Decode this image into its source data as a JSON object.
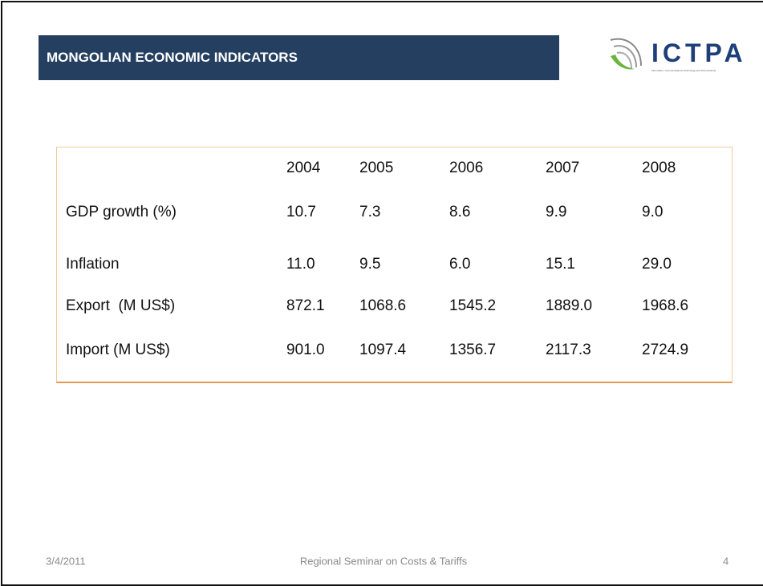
{
  "header": {
    "title": "MONGOLIAN ECONOMIC INDICATORS",
    "logo": "ICTPA",
    "logo_subtitle": "Information, Communications Technology and Post Authority"
  },
  "table": {
    "columns": [
      "2004",
      "2005",
      "2006",
      "2007",
      "2008"
    ],
    "rows": [
      {
        "label": "GDP growth (%)",
        "values": [
          "10.7",
          "7.3",
          "8.6",
          "9.9",
          "9.0"
        ]
      },
      {
        "label": "Inflation",
        "values": [
          "11.0",
          "9.5",
          "6.0",
          "15.1",
          "29.0"
        ]
      },
      {
        "label": "Export  (M US$)",
        "values": [
          "872.1",
          "1068.6",
          "1545.2",
          "1889.0",
          "1968.6"
        ]
      },
      {
        "label": "Import (M US$)",
        "values": [
          "901.0",
          "1097.4",
          "1356.7",
          "2117.3",
          "2724.9"
        ]
      }
    ]
  },
  "footer": {
    "date": "3/4/2011",
    "center": "Regional Seminar on Costs & Tariffs",
    "page": "4"
  }
}
